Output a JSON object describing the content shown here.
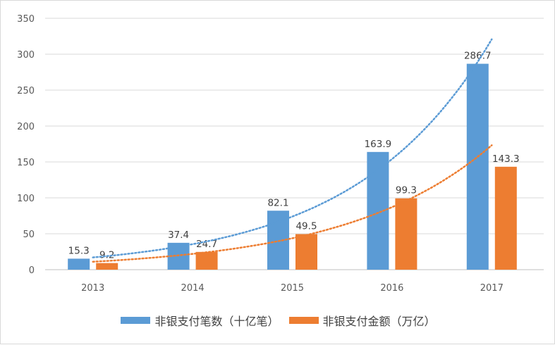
{
  "chart_data": {
    "type": "bar",
    "categories": [
      "2013",
      "2014",
      "2015",
      "2016",
      "2017"
    ],
    "series": [
      {
        "name": "非银支付笔数（十亿笔）",
        "values": [
          15.3,
          37.4,
          82.1,
          163.9,
          286.7
        ],
        "color": "#5B9BD5",
        "labels": [
          "15.3",
          "37.4",
          "82.1",
          "163.9",
          "286.7"
        ]
      },
      {
        "name": "非银支付金额（万亿）",
        "values": [
          9.2,
          24.7,
          49.5,
          99.3,
          143.3
        ],
        "color": "#ED7D31",
        "labels": [
          "9.2",
          "24.7",
          "49.5",
          "99.3",
          "143.3"
        ]
      }
    ],
    "trendlines": {
      "type": "exponential",
      "style": "dotted",
      "series": [
        "非银支付笔数（十亿笔）",
        "非银支付金额（万亿）"
      ]
    },
    "ylim": [
      0,
      350
    ],
    "yticks": [
      "0",
      "50",
      "100",
      "150",
      "200",
      "250",
      "300",
      "350"
    ],
    "grid": true,
    "legend": "bottom",
    "title": "",
    "xlabel": "",
    "ylabel": ""
  }
}
